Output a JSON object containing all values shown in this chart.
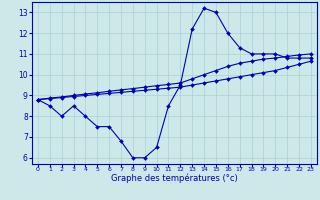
{
  "xlabel": "Graphe des températures (°c)",
  "bg_color": "#cce8e8",
  "grid_color": "#aad0d0",
  "line_color": "#0000bb",
  "xlim": [
    -0.5,
    23.5
  ],
  "ylim": [
    5.7,
    13.5
  ],
  "xticks": [
    0,
    1,
    2,
    3,
    4,
    5,
    6,
    7,
    8,
    9,
    10,
    11,
    12,
    13,
    14,
    15,
    16,
    17,
    18,
    19,
    20,
    21,
    22,
    23
  ],
  "yticks": [
    6,
    7,
    8,
    9,
    10,
    11,
    12,
    13
  ],
  "series": [
    [
      8.8,
      8.5,
      8.0,
      8.5,
      8.0,
      7.5,
      7.5,
      6.8,
      6.0,
      6.0,
      6.5,
      8.5,
      9.5,
      12.2,
      13.2,
      13.0,
      12.0,
      11.3,
      11.0,
      11.0,
      11.0,
      10.8,
      10.8,
      10.8
    ],
    [
      8.8,
      8.87,
      8.93,
      9.0,
      9.07,
      9.13,
      9.2,
      9.27,
      9.33,
      9.4,
      9.47,
      9.53,
      9.6,
      9.8,
      10.0,
      10.2,
      10.4,
      10.55,
      10.65,
      10.75,
      10.8,
      10.88,
      10.95,
      11.0
    ],
    [
      8.8,
      8.85,
      8.9,
      8.95,
      9.0,
      9.05,
      9.1,
      9.15,
      9.2,
      9.25,
      9.3,
      9.35,
      9.4,
      9.5,
      9.6,
      9.7,
      9.8,
      9.9,
      10.0,
      10.1,
      10.2,
      10.35,
      10.5,
      10.65
    ]
  ]
}
